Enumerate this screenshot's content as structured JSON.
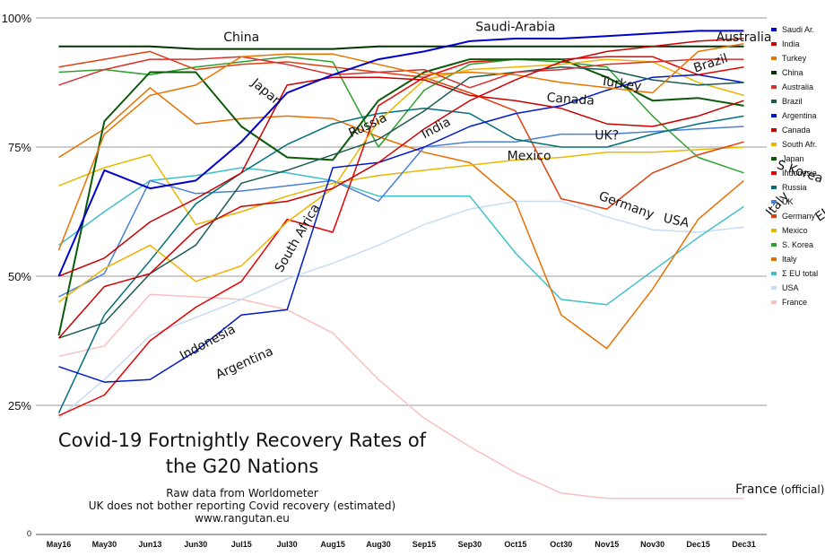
{
  "chart_data": {
    "type": "line",
    "title_lines": [
      "Covid-19 Fortnightly Recovery Rates of",
      "the G20 Nations"
    ],
    "subtitle_lines": [
      "Raw data from Worldometer",
      "UK does not bother reporting Covid recovery (estimated)",
      "www.rangutan.eu"
    ],
    "x": [
      "May16",
      "May30",
      "Jun13",
      "Jun30",
      "Jul15",
      "Jul30",
      "Aug15",
      "Aug30",
      "Sep15",
      "Sep30",
      "Oct15",
      "Oct30",
      "Nov15",
      "Nov30",
      "Dec15",
      "Dec31"
    ],
    "y_ticks": [
      {
        "value": 100,
        "label": "100%"
      },
      {
        "value": 75,
        "label": "75%"
      },
      {
        "value": 50,
        "label": "50%"
      },
      {
        "value": 25,
        "label": "25%"
      },
      {
        "value": 0,
        "label": "0"
      }
    ],
    "ylim": [
      0,
      100
    ],
    "grid": true,
    "legend_position": "right",
    "series": [
      {
        "name": "Saudi Ar.",
        "color": "#0000cc",
        "values": [
          50,
          70.5,
          67,
          68.5,
          76,
          85.5,
          89,
          92,
          93.5,
          95.5,
          96,
          96,
          96.5,
          97,
          97.5,
          97.5
        ]
      },
      {
        "name": "India",
        "color": "#d00000",
        "values": [
          38,
          48,
          50.5,
          59,
          63.5,
          64.5,
          67,
          72,
          78.5,
          84,
          88,
          91.5,
          93.5,
          94.5,
          95.5,
          96
        ]
      },
      {
        "name": "Turkey",
        "color": "#e87400",
        "values": [
          55,
          77.5,
          85,
          87,
          92.5,
          93,
          93,
          91,
          89,
          89.5,
          89,
          87.5,
          86.5,
          85.5,
          93.5,
          95
        ]
      },
      {
        "name": "China",
        "color": "#003300",
        "values": [
          94.5,
          94.5,
          94.5,
          94,
          94,
          94,
          94,
          94.5,
          94.5,
          94.5,
          94.5,
          94.5,
          94.5,
          94.5,
          94.5,
          94.5
        ]
      },
      {
        "name": "Australia",
        "color": "#d83030",
        "values": [
          87,
          90,
          92,
          92,
          92.5,
          91,
          89,
          89.5,
          90,
          86.5,
          89.5,
          90,
          91,
          91.5,
          92,
          92
        ]
      },
      {
        "name": "Brazil",
        "color": "#1a5a50",
        "values": [
          38,
          41,
          50.5,
          56,
          68,
          70.5,
          73.5,
          76.5,
          82,
          88.5,
          89.5,
          90.5,
          90,
          88,
          87,
          87.5
        ]
      },
      {
        "name": "Argentina",
        "color": "#0018c8",
        "values": [
          32.5,
          29.5,
          30,
          35.5,
          42.5,
          43.5,
          71,
          72,
          75,
          79,
          81.5,
          83,
          86,
          88.5,
          89,
          87.5
        ]
      },
      {
        "name": "Canada",
        "color": "#c80000",
        "values": [
          50,
          53.5,
          60.5,
          65,
          70,
          87,
          88.5,
          88.5,
          88,
          85,
          84,
          82.5,
          79.5,
          79,
          81,
          84
        ]
      },
      {
        "name": "South Afr.",
        "color": "#f0b400",
        "values": [
          45,
          51.5,
          56,
          49,
          52,
          60.5,
          67,
          80,
          88,
          90,
          90.5,
          91,
          92,
          91.5,
          87.5,
          85
        ]
      },
      {
        "name": "Japan",
        "color": "#0a5a0a",
        "values": [
          38.5,
          80,
          89.5,
          89.5,
          79,
          73,
          72.5,
          84,
          89.5,
          92,
          92,
          92,
          88.5,
          84,
          84.5,
          83
        ]
      },
      {
        "name": "Indonesia",
        "color": "#e80000",
        "values": [
          23,
          27,
          37.5,
          44,
          49,
          61,
          58.5,
          83,
          88.5,
          91.5,
          92,
          92,
          92.5,
          92.5,
          89,
          90.5
        ]
      },
      {
        "name": "Russia",
        "color": "#00707a",
        "values": [
          23.5,
          42.5,
          53,
          64,
          70,
          75.5,
          79.5,
          81.5,
          82.5,
          81.5,
          76.5,
          75,
          75,
          77.5,
          79.5,
          81
        ]
      },
      {
        "name": "UK",
        "color": "#4a80d8",
        "values": [
          46,
          50.5,
          68.5,
          66,
          66.5,
          67.5,
          68.5,
          64.5,
          75,
          76,
          76,
          77.5,
          77.5,
          78,
          78.5,
          79
        ]
      },
      {
        "name": "Germany",
        "color": "#e04010",
        "values": [
          90.5,
          92,
          93.5,
          90,
          91,
          91.5,
          90.5,
          89.5,
          88.5,
          85.5,
          82,
          65,
          63,
          70,
          73.5,
          76
        ]
      },
      {
        "name": "Mexico",
        "color": "#e8b800",
        "values": [
          67.5,
          71,
          73.5,
          60,
          62.5,
          65.5,
          68,
          69.5,
          70.5,
          71.5,
          72.5,
          73,
          74,
          74,
          74.5,
          75
        ]
      },
      {
        "name": "S. Korea",
        "color": "#30a030",
        "values": [
          89.5,
          90,
          89,
          90.5,
          91.5,
          92.5,
          91.5,
          75,
          86,
          91,
          92,
          91.5,
          90.5,
          81,
          73,
          70
        ]
      },
      {
        "name": "Italy",
        "color": "#e87000",
        "values": [
          73,
          78.5,
          86.5,
          79.5,
          80.5,
          81,
          80.5,
          77,
          74,
          72,
          64.5,
          42.5,
          36,
          47.5,
          61,
          68.5
        ]
      },
      {
        "name": "Σ EU total",
        "color": "#40c0c8",
        "values": [
          56,
          62.5,
          68.5,
          69.5,
          71,
          70,
          68.5,
          65.5,
          65.5,
          65.5,
          54.5,
          45.5,
          44.5,
          51,
          57.5,
          63.5
        ]
      },
      {
        "name": "USA",
        "color": "#c8dcf4",
        "values": [
          22.5,
          30,
          38.5,
          42,
          45.5,
          49.5,
          52.5,
          56,
          60,
          63,
          64.5,
          64.5,
          61.5,
          59,
          58.5,
          59.5
        ]
      },
      {
        "name": "France",
        "color": "#f8c0c0",
        "values": [
          34.5,
          36.5,
          46.5,
          46,
          45.5,
          43.5,
          39,
          30,
          22.5,
          17,
          12,
          8,
          7,
          7,
          7,
          7
        ]
      }
    ],
    "annotations": [
      {
        "text": "China",
        "x": 4,
        "y": 95.5,
        "angle": 0
      },
      {
        "text": "Saudi-Arabia",
        "x": 10,
        "y": 97.5,
        "angle": 0
      },
      {
        "text": "Australia",
        "x": 15,
        "y": 95.5,
        "angle": 0
      },
      {
        "text": "Brazil",
        "x": 14.3,
        "y": 90.5,
        "angle": -18
      },
      {
        "text": "Japan",
        "x": 4.5,
        "y": 85,
        "angle": 40
      },
      {
        "text": "Turkey",
        "x": 12.3,
        "y": 86.5,
        "angle": 8
      },
      {
        "text": "Canada",
        "x": 11.2,
        "y": 83.5,
        "angle": 4
      },
      {
        "text": "Russia",
        "x": 6.8,
        "y": 78.5,
        "angle": -25
      },
      {
        "text": "India",
        "x": 8.3,
        "y": 78,
        "angle": -28
      },
      {
        "text": "UK?",
        "x": 12,
        "y": 76.5,
        "angle": 0
      },
      {
        "text": "Mexico",
        "x": 10.3,
        "y": 72.5,
        "angle": 0
      },
      {
        "text": "S.Korea",
        "x": 16.2,
        "y": 69.5,
        "angle": 18
      },
      {
        "text": "South Africa",
        "x": 5.3,
        "y": 57,
        "angle": -60
      },
      {
        "text": "Germany",
        "x": 12.4,
        "y": 63,
        "angle": 20
      },
      {
        "text": "USA",
        "x": 13.5,
        "y": 60,
        "angle": 12
      },
      {
        "text": "Italy",
        "x": 15.8,
        "y": 63.5,
        "angle": -50
      },
      {
        "text": "EU",
        "x": 16.8,
        "y": 61.5,
        "angle": -35
      },
      {
        "text": "Indonesia",
        "x": 3.3,
        "y": 36.5,
        "angle": -28
      },
      {
        "text": "Argentina",
        "x": 4.1,
        "y": 32.5,
        "angle": -24
      },
      {
        "text": "France",
        "x": 15.6,
        "y": 8,
        "angle": 0,
        "suffix": "(official)"
      }
    ]
  }
}
